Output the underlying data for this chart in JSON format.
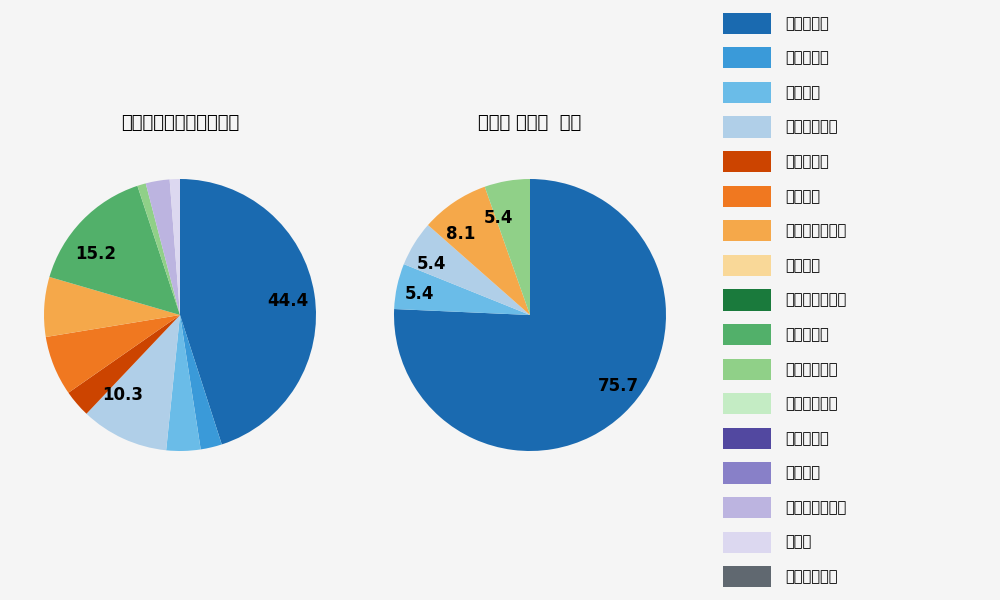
{
  "left_title": "セ・リーグ全プレイヤー",
  "right_title": "小笠原 慎之介  選手",
  "pitch_types": [
    "ストレート",
    "ツーシーム",
    "シュート",
    "カットボール",
    "スプリット",
    "フォーク",
    "チェンジアップ",
    "シンカー",
    "高速スライダー",
    "スライダー",
    "縦スライダー",
    "パワーカーブ",
    "スクリュー",
    "ナックル",
    "ナックルカーブ",
    "カーブ",
    "スローカーブ"
  ],
  "pitch_colors": [
    "#1a6ab0",
    "#3a9ad9",
    "#6abce8",
    "#b0cfe8",
    "#cc4400",
    "#f07820",
    "#f5a84a",
    "#f9d898",
    "#1a7a3c",
    "#52b06a",
    "#90d088",
    "#c4ecc4",
    "#5248a0",
    "#8880c8",
    "#bcb4e0",
    "#dcd8f0",
    "#606870"
  ],
  "left_values": [
    44.4,
    2.5,
    4.0,
    10.3,
    3.2,
    7.0,
    7.0,
    0.0,
    0.0,
    15.2,
    1.0,
    0.0,
    0.0,
    0.0,
    2.8,
    1.2,
    0.0
  ],
  "left_labels": [
    "44.4",
    "",
    "",
    "10.3",
    "",
    "",
    "",
    "",
    "",
    "15.2",
    "",
    "",
    "",
    "",
    "",
    "",
    ""
  ],
  "right_values": [
    75.7,
    0.0,
    5.4,
    5.4,
    0.0,
    0.0,
    8.1,
    0.0,
    0.0,
    0.0,
    5.4,
    0.0,
    0.0,
    0.0,
    0.0,
    0.0,
    0.0
  ],
  "right_labels": [
    "75.7",
    "",
    "5.4",
    "5.4",
    "",
    "",
    "8.1",
    "",
    "",
    "",
    "5.4",
    "",
    "",
    "",
    "",
    "",
    ""
  ],
  "background_color": "#f5f5f5",
  "text_color": "#000000"
}
